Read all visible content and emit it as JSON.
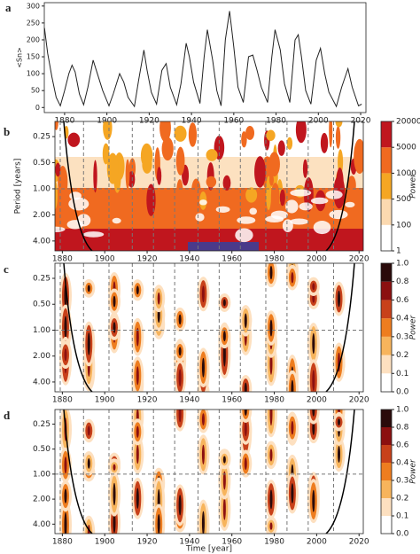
{
  "chart_data": [
    {
      "type": "line",
      "panel_label": "a",
      "ylabel": "<Sn>",
      "x": [
        1870.5,
        1872,
        1874,
        1876,
        1878,
        1880,
        1882,
        1883.5,
        1885,
        1887,
        1889,
        1891,
        1893.5,
        1895,
        1898,
        1901,
        1903,
        1906,
        1908,
        1910,
        1913,
        1915,
        1917.5,
        1919,
        1921,
        1923.5,
        1926,
        1928,
        1930,
        1933,
        1935,
        1937.5,
        1939,
        1941,
        1944,
        1946,
        1947.5,
        1950,
        1952,
        1954,
        1956,
        1958,
        1960,
        1962,
        1964.5,
        1967,
        1969,
        1971,
        1973,
        1976,
        1978,
        1979.5,
        1982,
        1984,
        1986.5,
        1989,
        1990.5,
        1992,
        1994,
        1996.5,
        1999,
        2001,
        2003,
        2005,
        2008.5,
        2011,
        2014,
        2016,
        2019,
        2020.5
      ],
      "values": [
        235,
        160,
        90,
        30,
        5,
        50,
        100,
        125,
        105,
        40,
        8,
        60,
        140,
        110,
        50,
        5,
        40,
        100,
        75,
        30,
        3,
        80,
        170,
        110,
        45,
        10,
        110,
        130,
        60,
        8,
        70,
        190,
        150,
        75,
        12,
        150,
        230,
        140,
        50,
        5,
        200,
        285,
        180,
        60,
        15,
        150,
        155,
        110,
        60,
        15,
        150,
        230,
        170,
        70,
        15,
        200,
        215,
        150,
        50,
        10,
        140,
        175,
        100,
        45,
        3,
        60,
        115,
        60,
        5,
        10
      ],
      "color": "#222222",
      "xlim": [
        1870.4,
        2022.5
      ],
      "xticks": [
        1880,
        1900,
        1920,
        1940,
        1960,
        1980,
        2000,
        2020
      ],
      "ylim": [
        -15,
        310
      ],
      "yticks": [
        0,
        50,
        100,
        150,
        200,
        250,
        300
      ]
    },
    {
      "type": "contour",
      "panel_label": "b",
      "ylabel": "Period [years]",
      "colorbar_label": "Power",
      "xlim": [
        1876.5,
        2022
      ],
      "xticks": [
        1880,
        1900,
        1920,
        1940,
        1960,
        1980,
        2000,
        2020
      ],
      "ylim": [
        0.167,
        5.2
      ],
      "log_y": true,
      "y_inverted": true,
      "yticks": [
        0.25,
        {
          "value": 0.5,
          "label": "0.50"
        },
        {
          "value": 1,
          "label": "1.00"
        },
        {
          "value": 2,
          "label": "2.00"
        },
        {
          "value": 4,
          "label": "4.00"
        }
      ],
      "levels": [
        1,
        100,
        500,
        1000,
        5000,
        20000
      ],
      "level_colors": [
        "#ffffff",
        "#fbd9b0",
        "#f5a623",
        "#f06a20",
        "#c0161e"
      ]
    },
    {
      "type": "contour",
      "panel_label": "c",
      "colorbar_label": "Power",
      "xlim": [
        1876.5,
        2022
      ],
      "xticks": [
        1880,
        1900,
        1920,
        1940,
        1960,
        1980,
        2000,
        2020
      ],
      "ylim": [
        0.167,
        5.2
      ],
      "log_y": true,
      "y_inverted": true,
      "yticks": [
        0.25,
        {
          "value": 0.5,
          "label": "0.50"
        },
        {
          "value": 1,
          "label": "1.00"
        },
        {
          "value": 2,
          "label": "2.00"
        },
        {
          "value": 4,
          "label": "4.00"
        }
      ],
      "levels": [
        {
          "value": 0,
          "label": "0.0"
        },
        0.1,
        0.2,
        0.3,
        0.4,
        0.6,
        0.8,
        {
          "value": 1,
          "label": "1.0"
        }
      ],
      "level_colors": [
        "#ffffff",
        "#fde0c0",
        "#f7b45c",
        "#ee7d1f",
        "#c8411a",
        "#8b1010",
        "#2a0a0a"
      ]
    },
    {
      "type": "contour",
      "panel_label": "d",
      "xlabel": "Time [year]",
      "colorbar_label": "Power",
      "xlim": [
        1876.5,
        2022
      ],
      "xticks": [
        1880,
        1900,
        1920,
        1940,
        1960,
        1980,
        2000,
        2020
      ],
      "ylim": [
        0.167,
        5.2
      ],
      "log_y": true,
      "y_inverted": true,
      "yticks": [
        0.25,
        {
          "value": 0.5,
          "label": "0.50"
        },
        {
          "value": 1,
          "label": "1.00"
        },
        {
          "value": 2,
          "label": "2.00"
        },
        {
          "value": 4,
          "label": "4.00"
        }
      ],
      "levels": [
        {
          "value": 0,
          "label": "0.0"
        },
        0.1,
        0.2,
        0.3,
        0.4,
        0.6,
        0.8,
        {
          "value": 1,
          "label": "1.0"
        }
      ],
      "level_colors": [
        "#ffffff",
        "#fde0c0",
        "#f7b45c",
        "#ee7d1f",
        "#c8411a",
        "#8b1010",
        "#2a0a0a"
      ]
    }
  ]
}
